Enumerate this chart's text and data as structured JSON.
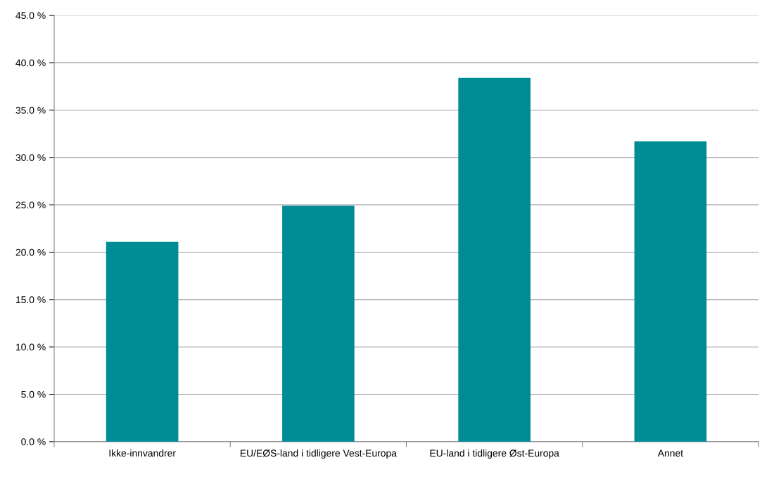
{
  "chart_data": {
    "type": "bar",
    "categories": [
      "Ikke-innvandrer",
      "EU/EØS-land i tidligere Vest-Europa",
      "EU-land i tidligere Øst-Europa",
      "Annet"
    ],
    "values": [
      21.1,
      24.9,
      38.4,
      31.7
    ],
    "color": "#008c95",
    "ylim": [
      0,
      45
    ],
    "yticks": [
      {
        "value": 0,
        "label": "0.0 %"
      },
      {
        "value": 5,
        "label": "5.0 %"
      },
      {
        "value": 10,
        "label": "10.0 %"
      },
      {
        "value": 15,
        "label": "15.0 %"
      },
      {
        "value": 20,
        "label": "20.0 %"
      },
      {
        "value": 25,
        "label": "25.0 %"
      },
      {
        "value": 30,
        "label": "30.0 %"
      },
      {
        "value": 35,
        "label": "35.0 %"
      },
      {
        "value": 40,
        "label": "40.0 %"
      },
      {
        "value": 45,
        "label": "45.0 %"
      }
    ],
    "grid": "y",
    "legend": false
  }
}
